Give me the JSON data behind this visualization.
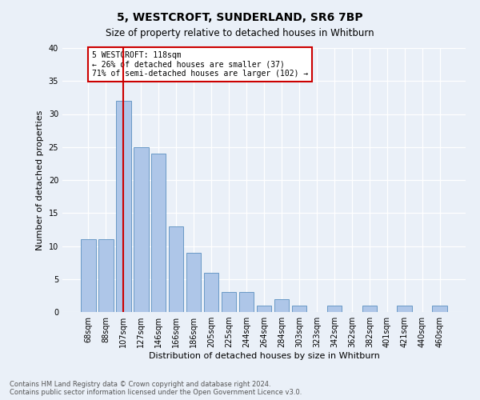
{
  "title1": "5, WESTCROFT, SUNDERLAND, SR6 7BP",
  "title2": "Size of property relative to detached houses in Whitburn",
  "xlabel": "Distribution of detached houses by size in Whitburn",
  "ylabel": "Number of detached properties",
  "bar_labels": [
    "68sqm",
    "88sqm",
    "107sqm",
    "127sqm",
    "146sqm",
    "166sqm",
    "186sqm",
    "205sqm",
    "225sqm",
    "244sqm",
    "264sqm",
    "284sqm",
    "303sqm",
    "323sqm",
    "342sqm",
    "362sqm",
    "382sqm",
    "401sqm",
    "421sqm",
    "440sqm",
    "460sqm"
  ],
  "bar_values": [
    11,
    11,
    32,
    25,
    24,
    13,
    9,
    6,
    3,
    3,
    1,
    2,
    1,
    0,
    1,
    0,
    1,
    0,
    1,
    0,
    1
  ],
  "bar_color": "#aec6e8",
  "bar_edge_color": "#5a8fc0",
  "vline_x": 2,
  "vline_color": "#cc0000",
  "annotation_text": "5 WESTCROFT: 118sqm\n← 26% of detached houses are smaller (37)\n71% of semi-detached houses are larger (102) →",
  "annotation_box_color": "#ffffff",
  "annotation_box_edge": "#cc0000",
  "ylim": [
    0,
    40
  ],
  "yticks": [
    0,
    5,
    10,
    15,
    20,
    25,
    30,
    35,
    40
  ],
  "footer": "Contains HM Land Registry data © Crown copyright and database right 2024.\nContains public sector information licensed under the Open Government Licence v3.0.",
  "bg_color": "#eaf0f8",
  "plot_bg_color": "#eaf0f8",
  "grid_color": "#ffffff"
}
